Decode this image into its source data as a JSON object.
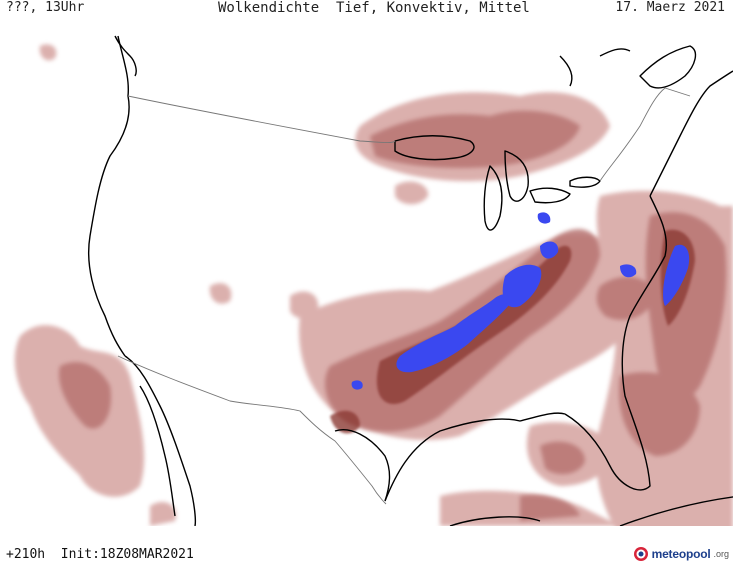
{
  "header": {
    "left": "???, 13Uhr",
    "center": "Wolkendichte  Tief, Konvektiv, Mittel",
    "right": "17. Maerz 2021"
  },
  "footer": {
    "run_info": "+210h  Init:18Z08MAR2021",
    "brand_name": "meteopool",
    "brand_tld": ".org"
  },
  "map": {
    "colors": {
      "light_cloud": "#d8a8a5",
      "medium_cloud": "#b87472",
      "dense_cloud": "#8c3a36",
      "convective": "#3a48f0",
      "outline": "#000000",
      "border": "#777777"
    }
  }
}
